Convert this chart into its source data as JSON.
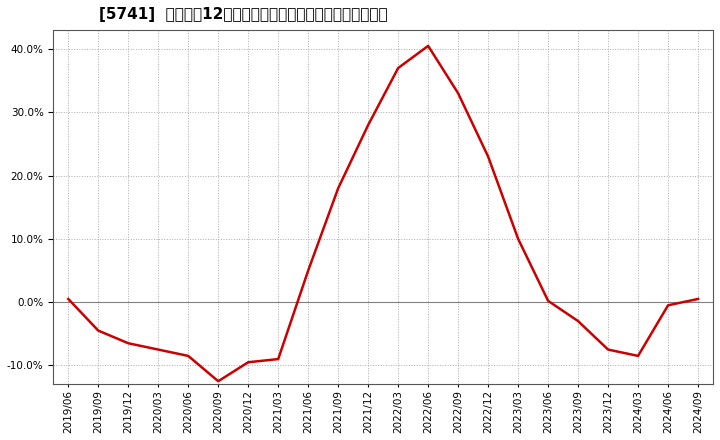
{
  "title": "[5741]  売上高の12か月移動合計の対前年同期増減率の推移",
  "x_labels": [
    "2019/06",
    "2019/09",
    "2019/12",
    "2020/03",
    "2020/06",
    "2020/09",
    "2020/12",
    "2021/03",
    "2021/06",
    "2021/09",
    "2021/12",
    "2022/03",
    "2022/06",
    "2022/09",
    "2022/12",
    "2023/03",
    "2023/06",
    "2023/09",
    "2023/12",
    "2024/03",
    "2024/06",
    "2024/09"
  ],
  "x_values": [
    0,
    1,
    2,
    3,
    4,
    5,
    6,
    7,
    8,
    9,
    10,
    11,
    12,
    13,
    14,
    15,
    16,
    17,
    18,
    19,
    20,
    21
  ],
  "y_values": [
    0.5,
    -4.5,
    -6.5,
    -7.5,
    -8.5,
    -12.5,
    -9.5,
    -9.0,
    5.0,
    18.0,
    28.0,
    37.0,
    40.5,
    33.0,
    23.0,
    10.0,
    0.2,
    -3.0,
    -7.5,
    -8.5,
    -0.5,
    0.5
  ],
  "line_color": "#cc0000",
  "background_color": "#ffffff",
  "plot_bg_color": "#ffffff",
  "zero_line_color": "#808080",
  "grid_color": "#aaaaaa",
  "ylim": [
    -13,
    43
  ],
  "yticks": [
    -10.0,
    0.0,
    10.0,
    20.0,
    30.0,
    40.0
  ],
  "title_fontsize": 11,
  "tick_fontsize": 7.5
}
